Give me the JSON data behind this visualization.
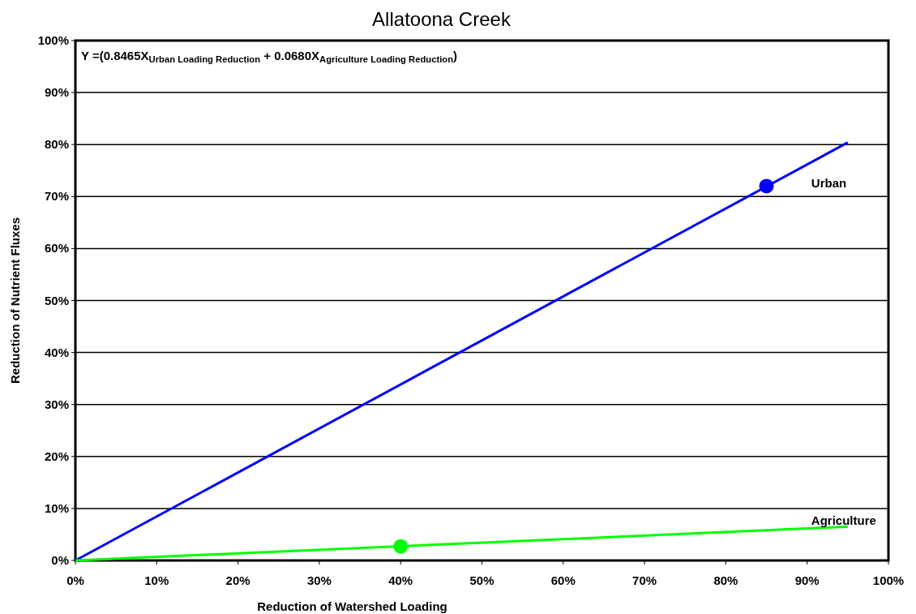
{
  "chart_data": {
    "type": "line",
    "title": "Allatoona Creek",
    "xlabel": "Reduction of Watershed Loading",
    "ylabel": "Reduction of Nutrient Fluxes",
    "annotations": [
      "Y =(0.8465X$_{Urban Loading Reduction}$ + 0.0680X$_{Agriculture Loading Reduction}$)"
    ],
    "series": [
      {
        "name": "Urban",
        "color": "#0000ff",
        "x": [
          0,
          95
        ],
        "values": [
          0,
          80.4
        ]
      },
      {
        "name": "Agriculture",
        "color": "#00ff00",
        "x": [
          0,
          95
        ],
        "values": [
          0,
          6.5
        ]
      },
      {
        "type": "scatter",
        "marker": "circle",
        "color": "#0000ff",
        "x": [
          85
        ],
        "values": [
          72
        ]
      },
      {
        "type": "scatter",
        "marker": "circle",
        "color": "#00ff00",
        "x": [
          40
        ],
        "values": [
          2.7
        ]
      }
    ],
    "xlim": [
      0,
      100
    ],
    "ylim": [
      0,
      100
    ],
    "xticks": [
      {
        "value": 0,
        "label": "0%"
      },
      {
        "value": 10,
        "label": "10%"
      },
      {
        "value": 20,
        "label": "20%"
      },
      {
        "value": 30,
        "label": "30%"
      },
      {
        "value": 40,
        "label": "40%"
      },
      {
        "value": 50,
        "label": "50%"
      },
      {
        "value": 60,
        "label": "60%"
      },
      {
        "value": 70,
        "label": "70%"
      },
      {
        "value": 80,
        "label": "80%"
      },
      {
        "value": 90,
        "label": "90%"
      },
      {
        "value": 100,
        "label": "100%"
      }
    ],
    "yticks": [
      {
        "value": 0,
        "label": "0%"
      },
      {
        "value": 10,
        "label": "10%"
      },
      {
        "value": 20,
        "label": "20%"
      },
      {
        "value": 30,
        "label": "30%"
      },
      {
        "value": 40,
        "label": "40%"
      },
      {
        "value": 50,
        "label": "50%"
      },
      {
        "value": 60,
        "label": "60%"
      },
      {
        "value": 70,
        "label": "70%"
      },
      {
        "value": 80,
        "label": "80%"
      },
      {
        "value": 90,
        "label": "90%"
      },
      {
        "value": 100,
        "label": "100%"
      }
    ],
    "grid": "y"
  }
}
